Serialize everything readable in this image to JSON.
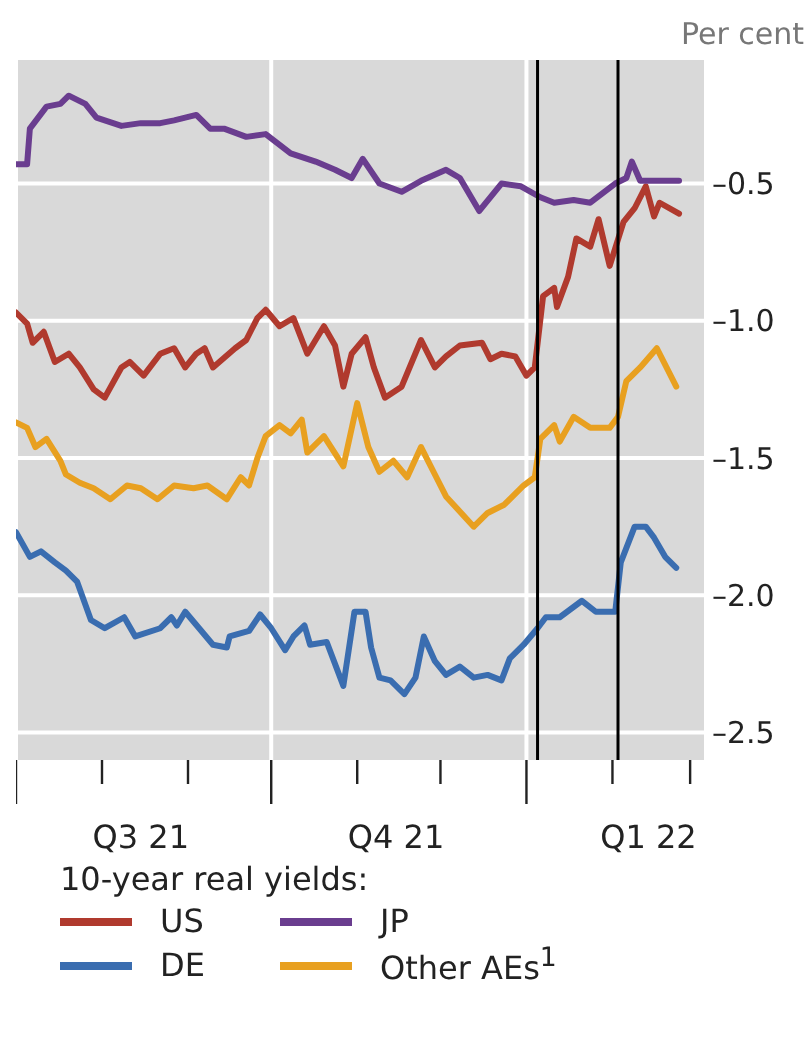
{
  "chart_data": {
    "type": "line",
    "ylabel": "Per cent",
    "legend_title": "10-year real yields:",
    "legend": "bottom",
    "grid": true,
    "line_style": "solid",
    "marker": "none",
    "xlim": [
      "2021-07-01",
      "2022-03-06"
    ],
    "xticks": [
      {
        "value": "2021-07-01",
        "label": null
      },
      {
        "value": "2021-08-01",
        "label": null
      },
      {
        "value": "2021-08-15",
        "label": "Q3 21"
      },
      {
        "value": "2021-09-01",
        "label": null
      },
      {
        "value": "2021-10-01",
        "label": null
      },
      {
        "value": "2021-11-01",
        "label": null
      },
      {
        "value": "2021-11-15",
        "label": "Q4 21"
      },
      {
        "value": "2021-12-01",
        "label": null
      },
      {
        "value": "2022-01-01",
        "label": null
      },
      {
        "value": "2022-02-01",
        "label": null
      },
      {
        "value": "2022-02-14",
        "label": "Q1 22"
      },
      {
        "value": "2022-03-01",
        "label": null
      }
    ],
    "ylim": [
      -2.6,
      -0.05
    ],
    "yticks": [
      {
        "value": -0.5,
        "label": "–0.5"
      },
      {
        "value": -1.0,
        "label": "–1.0"
      },
      {
        "value": -1.5,
        "label": "–1.5"
      },
      {
        "value": -2.0,
        "label": "–2.0"
      },
      {
        "value": -2.5,
        "label": "–2.5"
      }
    ],
    "ref_lines": [
      {
        "axis": "x",
        "value": "2022-01-05",
        "color": "#000000"
      },
      {
        "axis": "x",
        "value": "2022-02-03",
        "color": "#000000"
      }
    ],
    "series": [
      {
        "name": "US",
        "color": "#b03a2e",
        "x": [
          "2021-07-01",
          "2021-07-05",
          "2021-07-07",
          "2021-07-11",
          "2021-07-15",
          "2021-07-20",
          "2021-07-24",
          "2021-07-29",
          "2021-08-02",
          "2021-08-08",
          "2021-08-11",
          "2021-08-16",
          "2021-08-22",
          "2021-08-27",
          "2021-08-31",
          "2021-09-04",
          "2021-09-07",
          "2021-09-10",
          "2021-09-18",
          "2021-09-22",
          "2021-09-26",
          "2021-09-29",
          "2021-10-04",
          "2021-10-09",
          "2021-10-14",
          "2021-10-20",
          "2021-10-24",
          "2021-10-27",
          "2021-10-30",
          "2021-11-04",
          "2021-11-07",
          "2021-11-11",
          "2021-11-17",
          "2021-11-24",
          "2021-11-29",
          "2021-12-03",
          "2021-12-08",
          "2021-12-16",
          "2021-12-19",
          "2021-12-23",
          "2021-12-28",
          "2022-01-01",
          "2022-01-04",
          "2022-01-07",
          "2022-01-11",
          "2022-01-12",
          "2022-01-16",
          "2022-01-19",
          "2022-01-24",
          "2022-01-27",
          "2022-01-31",
          "2022-02-05",
          "2022-02-09",
          "2022-02-13",
          "2022-02-16",
          "2022-02-18",
          "2022-02-25"
        ],
        "values": [
          -0.97,
          -1.01,
          -1.08,
          -1.04,
          -1.15,
          -1.12,
          -1.17,
          -1.25,
          -1.28,
          -1.17,
          -1.15,
          -1.2,
          -1.12,
          -1.1,
          -1.17,
          -1.12,
          -1.1,
          -1.17,
          -1.1,
          -1.07,
          -0.99,
          -0.96,
          -1.02,
          -0.99,
          -1.12,
          -1.02,
          -1.09,
          -1.24,
          -1.12,
          -1.06,
          -1.17,
          -1.28,
          -1.24,
          -1.07,
          -1.17,
          -1.13,
          -1.09,
          -1.08,
          -1.14,
          -1.12,
          -1.13,
          -1.2,
          -1.17,
          -0.91,
          -0.88,
          -0.95,
          -0.84,
          -0.7,
          -0.73,
          -0.63,
          -0.8,
          -0.64,
          -0.59,
          -0.51,
          -0.62,
          -0.57,
          -0.61
        ]
      },
      {
        "name": "DE",
        "color": "#3a6db0",
        "x": [
          "2021-07-01",
          "2021-07-06",
          "2021-07-10",
          "2021-07-15",
          "2021-07-19",
          "2021-07-23",
          "2021-07-28",
          "2021-08-02",
          "2021-08-09",
          "2021-08-13",
          "2021-08-22",
          "2021-08-26",
          "2021-08-28",
          "2021-08-31",
          "2021-09-05",
          "2021-09-10",
          "2021-09-15",
          "2021-09-16",
          "2021-09-23",
          "2021-09-27",
          "2021-10-01",
          "2021-10-06",
          "2021-10-09",
          "2021-10-13",
          "2021-10-15",
          "2021-10-21",
          "2021-10-27",
          "2021-10-31",
          "2021-11-04",
          "2021-11-06",
          "2021-11-09",
          "2021-11-13",
          "2021-11-18",
          "2021-11-22",
          "2021-11-25",
          "2021-11-29",
          "2021-12-03",
          "2021-12-08",
          "2021-12-13",
          "2021-12-18",
          "2021-12-23",
          "2021-12-26",
          "2021-12-31",
          "2022-01-05",
          "2022-01-08",
          "2022-01-13",
          "2022-01-21",
          "2022-01-26",
          "2022-02-02",
          "2022-02-04",
          "2022-02-09",
          "2022-02-13",
          "2022-02-16",
          "2022-02-20",
          "2022-02-24"
        ],
        "values": [
          -1.77,
          -1.86,
          -1.84,
          -1.88,
          -1.91,
          -1.95,
          -2.09,
          -2.12,
          -2.08,
          -2.15,
          -2.12,
          -2.08,
          -2.11,
          -2.06,
          -2.12,
          -2.18,
          -2.19,
          -2.15,
          -2.13,
          -2.07,
          -2.12,
          -2.2,
          -2.15,
          -2.11,
          -2.18,
          -2.17,
          -2.33,
          -2.06,
          -2.06,
          -2.19,
          -2.3,
          -2.31,
          -2.36,
          -2.3,
          -2.15,
          -2.24,
          -2.29,
          -2.26,
          -2.3,
          -2.29,
          -2.31,
          -2.23,
          -2.18,
          -2.12,
          -2.08,
          -2.08,
          -2.02,
          -2.06,
          -2.06,
          -1.88,
          -1.75,
          -1.75,
          -1.79,
          -1.86,
          -1.9
        ]
      },
      {
        "name": "JP",
        "color": "#6a3d8f",
        "x": [
          "2021-07-01",
          "2021-07-05",
          "2021-07-06",
          "2021-07-12",
          "2021-07-17",
          "2021-07-20",
          "2021-07-26",
          "2021-07-30",
          "2021-08-08",
          "2021-08-15",
          "2021-08-22",
          "2021-08-27",
          "2021-09-04",
          "2021-09-09",
          "2021-09-14",
          "2021-09-22",
          "2021-09-29",
          "2021-10-08",
          "2021-10-17",
          "2021-10-24",
          "2021-10-30",
          "2021-11-03",
          "2021-11-09",
          "2021-11-17",
          "2021-11-24",
          "2021-12-03",
          "2021-12-08",
          "2021-12-15",
          "2021-12-23",
          "2021-12-30",
          "2022-01-06",
          "2022-01-11",
          "2022-01-18",
          "2022-01-24",
          "2022-02-02",
          "2022-02-06",
          "2022-02-08",
          "2022-02-11",
          "2022-02-18",
          "2022-02-25"
        ],
        "values": [
          -0.43,
          -0.43,
          -0.3,
          -0.22,
          -0.21,
          -0.18,
          -0.21,
          -0.26,
          -0.29,
          -0.28,
          -0.28,
          -0.27,
          -0.25,
          -0.3,
          -0.3,
          -0.33,
          -0.32,
          -0.39,
          -0.42,
          -0.45,
          -0.48,
          -0.41,
          -0.5,
          -0.53,
          -0.49,
          -0.45,
          -0.48,
          -0.6,
          -0.5,
          -0.51,
          -0.55,
          -0.57,
          -0.56,
          -0.57,
          -0.5,
          -0.48,
          -0.42,
          -0.49,
          -0.49,
          -0.49
        ]
      },
      {
        "name": "Other AEs$^{1}$",
        "color": "#e8a020",
        "x": [
          "2021-07-01",
          "2021-07-05",
          "2021-07-08",
          "2021-07-12",
          "2021-07-17",
          "2021-07-19",
          "2021-07-24",
          "2021-07-29",
          "2021-08-04",
          "2021-08-10",
          "2021-08-15",
          "2021-08-21",
          "2021-08-27",
          "2021-09-03",
          "2021-09-08",
          "2021-09-15",
          "2021-09-20",
          "2021-09-23",
          "2021-09-26",
          "2021-09-29",
          "2021-10-04",
          "2021-10-08",
          "2021-10-12",
          "2021-10-14",
          "2021-10-20",
          "2021-10-27",
          "2021-11-01",
          "2021-11-05",
          "2021-11-09",
          "2021-11-14",
          "2021-11-19",
          "2021-11-24",
          "2021-11-29",
          "2021-12-03",
          "2021-12-13",
          "2021-12-18",
          "2021-12-24",
          "2021-12-31",
          "2022-01-04",
          "2022-01-06",
          "2022-01-11",
          "2022-01-13",
          "2022-01-18",
          "2022-01-24",
          "2022-01-31",
          "2022-02-03",
          "2022-02-06",
          "2022-02-11",
          "2022-02-17",
          "2022-02-24"
        ],
        "values": [
          -1.37,
          -1.39,
          -1.46,
          -1.43,
          -1.51,
          -1.56,
          -1.59,
          -1.61,
          -1.65,
          -1.6,
          -1.61,
          -1.65,
          -1.6,
          -1.61,
          -1.6,
          -1.65,
          -1.57,
          -1.6,
          -1.5,
          -1.42,
          -1.38,
          -1.41,
          -1.36,
          -1.48,
          -1.42,
          -1.53,
          -1.3,
          -1.46,
          -1.55,
          -1.51,
          -1.57,
          -1.46,
          -1.56,
          -1.64,
          -1.75,
          -1.7,
          -1.67,
          -1.6,
          -1.57,
          -1.43,
          -1.38,
          -1.44,
          -1.35,
          -1.39,
          -1.39,
          -1.35,
          -1.22,
          -1.17,
          -1.1,
          -1.24
        ]
      }
    ]
  }
}
